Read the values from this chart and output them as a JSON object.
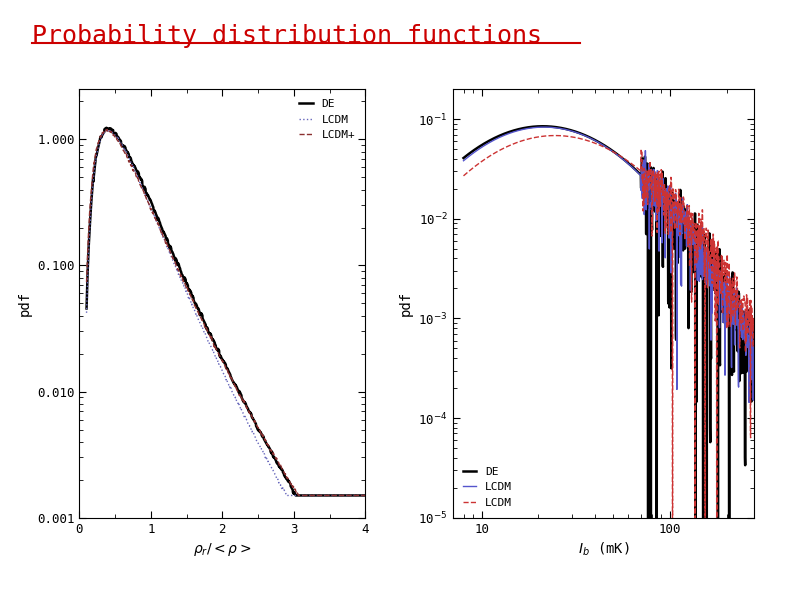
{
  "title": "Probability distribution functions",
  "title_color": "#cc0000",
  "title_fontsize": 18,
  "bg_color": "#ffffff",
  "plot1": {
    "xlabel": "$\\rho_r/<\\rho>$",
    "ylabel": "pdf",
    "xlim": [
      0,
      4
    ],
    "ylim_log": [
      0.001,
      2.5
    ],
    "legend_labels": [
      "DE",
      "LCDM",
      "LCDM+"
    ],
    "legend_colors": [
      "#000000",
      "#6666bb",
      "#8b3030"
    ],
    "ytick_vals": [
      0.001,
      0.01,
      0.1,
      1.0
    ],
    "ytick_labels": [
      "0.001",
      "0.010",
      "0.100",
      "1.000"
    ],
    "xticks": [
      0,
      1,
      2,
      3,
      4
    ]
  },
  "plot2": {
    "xlabel": "$I_b$ (mK)",
    "ylabel": "pdf",
    "ylim_log": [
      1e-05,
      0.2
    ],
    "legend_labels": [
      "DE",
      "LCDM",
      "LCDM"
    ],
    "legend_colors": [
      "#000000",
      "#5555cc",
      "#cc3333"
    ],
    "ytick_vals": [
      1e-05,
      0.0001,
      0.001,
      0.01,
      0.1
    ],
    "ytick_labels": [
      "10$^{-5}$",
      "10$^{-4}$",
      "10$^{-3}$",
      "10$^{-2}$",
      "10$^{-1}$"
    ],
    "xtick_vals": [
      10,
      100
    ],
    "xtick_labels": [
      "10",
      "100"
    ],
    "xlim": [
      7,
      280
    ]
  }
}
